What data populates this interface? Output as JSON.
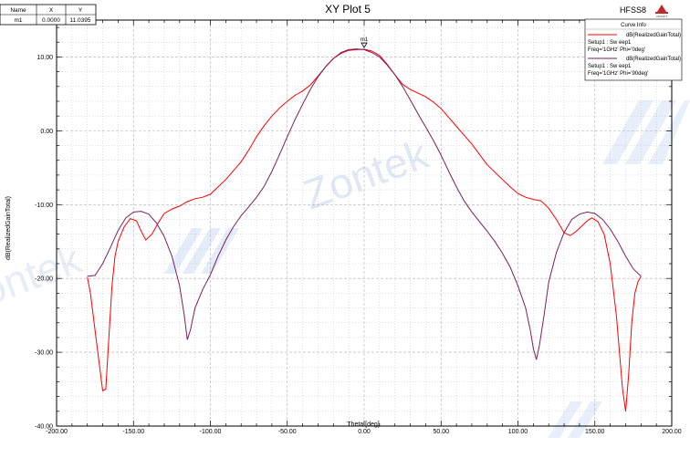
{
  "header": {
    "title": "XY Plot 5",
    "software": "HFSS8",
    "logo_text": "ANSOFT"
  },
  "marker_table": {
    "headers": [
      "Name",
      "X",
      "Y"
    ],
    "rows": [
      [
        "m1",
        "0.0000",
        "11.0395"
      ]
    ]
  },
  "legend": {
    "title": "Curve Info",
    "entries": [
      {
        "line1": "dB(RealizedGainTotal)",
        "line2": "Setup1 : Sw eep1",
        "line3": "Freq='1GHz' Phi='0deg'",
        "color": "#ff0000"
      },
      {
        "line1": "dB(RealizedGainTotal)",
        "line2": "Setup1 : Sw eep1",
        "line3": "Freq='1GHz' Phi='90deg'",
        "color": "#7a1f5c"
      }
    ]
  },
  "watermark": "Zontek",
  "chart_data": {
    "type": "line",
    "title": "XY Plot 5",
    "xlabel": "Theta [deg]",
    "ylabel": "dB(RealizedGainTotal)",
    "xlim": [
      -200,
      200
    ],
    "ylim": [
      -40,
      15
    ],
    "xticks": [
      -200,
      -150,
      -100,
      -50,
      0,
      50,
      100,
      150,
      200
    ],
    "xtick_labels": [
      "-200.00",
      "-150.00",
      "-100.00",
      "-50.00",
      "0.00",
      "50.00",
      "100.00",
      "150.00",
      "200.00"
    ],
    "yticks": [
      -40,
      -30,
      -20,
      -10,
      0,
      10
    ],
    "ytick_labels": [
      "-40.00",
      "-30.00",
      "-20.00",
      "-10.00",
      "0.00",
      "10.00"
    ],
    "grid": true,
    "legend_position": "top-right",
    "marker": {
      "name": "m1",
      "x": 0,
      "y": 11.0395
    },
    "series": [
      {
        "label": "dB(RealizedGainTotal) Setup1 : Sw eep1 Freq='1GHz' Phi='0deg'",
        "color": "#ff0000",
        "x": [
          -180,
          -178,
          -175,
          -172,
          -170,
          -168,
          -166,
          -164,
          -162,
          -160,
          -156,
          -152,
          -148,
          -145,
          -142,
          -138,
          -134,
          -130,
          -125,
          -120,
          -115,
          -110,
          -105,
          -100,
          -95,
          -90,
          -85,
          -80,
          -75,
          -70,
          -65,
          -60,
          -55,
          -50,
          -45,
          -40,
          -35,
          -30,
          -25,
          -20,
          -15,
          -10,
          -5,
          0,
          5,
          10,
          15,
          20,
          25,
          30,
          35,
          40,
          45,
          50,
          55,
          60,
          65,
          70,
          75,
          80,
          85,
          90,
          95,
          100,
          105,
          110,
          115,
          120,
          125,
          130,
          134,
          138,
          142,
          145,
          148,
          152,
          156,
          160,
          164,
          168,
          170,
          172,
          174,
          176,
          178,
          180
        ],
        "y": [
          -19.8,
          -22,
          -27,
          -32,
          -35.2,
          -35,
          -28,
          -21,
          -17,
          -15,
          -13,
          -11.9,
          -12.2,
          -13.6,
          -14.8,
          -14,
          -12.5,
          -11.2,
          -10.6,
          -10.2,
          -9.6,
          -9.2,
          -9,
          -8.6,
          -7.6,
          -6.6,
          -5.4,
          -4.2,
          -2.6,
          -0.8,
          0.7,
          2,
          3.1,
          4,
          4.8,
          5.4,
          6.2,
          7.4,
          8.7,
          9.8,
          10.5,
          10.9,
          11,
          11.04,
          10.8,
          10.2,
          9,
          7.6,
          6.3,
          5.6,
          5.1,
          4.6,
          3.9,
          3,
          1.8,
          0.6,
          -0.6,
          -1.8,
          -3.2,
          -4.6,
          -5.6,
          -6.6,
          -7.6,
          -8.5,
          -9,
          -9.3,
          -9.5,
          -10.5,
          -12,
          -13.8,
          -14.2,
          -13.6,
          -12.8,
          -12.2,
          -11.8,
          -12.3,
          -14,
          -18,
          -25,
          -35,
          -38,
          -33,
          -26,
          -22,
          -20.5,
          -19.7
        ]
      },
      {
        "label": "dB(RealizedGainTotal) Setup1 : Sw eep1 Freq='1GHz' Phi='90deg'",
        "color": "#7a1f5c",
        "x": [
          -180,
          -175,
          -170,
          -165,
          -160,
          -155,
          -150,
          -145,
          -140,
          -135,
          -130,
          -125,
          -120,
          -117,
          -115,
          -113,
          -110,
          -105,
          -100,
          -95,
          -90,
          -85,
          -80,
          -75,
          -70,
          -65,
          -60,
          -55,
          -50,
          -45,
          -40,
          -35,
          -30,
          -25,
          -20,
          -15,
          -10,
          -5,
          0,
          5,
          10,
          15,
          20,
          25,
          30,
          35,
          40,
          45,
          50,
          55,
          60,
          65,
          70,
          75,
          80,
          85,
          90,
          95,
          100,
          105,
          108,
          110,
          112,
          114,
          117,
          120,
          125,
          130,
          135,
          140,
          145,
          150,
          155,
          160,
          165,
          170,
          175,
          180
        ],
        "y": [
          -19.7,
          -19.6,
          -18,
          -15.8,
          -13.5,
          -11.8,
          -11,
          -10.9,
          -11.3,
          -12.5,
          -14.3,
          -17,
          -21,
          -25,
          -28.3,
          -27,
          -24,
          -21.5,
          -19.5,
          -17,
          -14.8,
          -13,
          -11.5,
          -10.3,
          -9,
          -7.5,
          -5.5,
          -3.2,
          -0.8,
          1.5,
          3.6,
          5.6,
          7.3,
          8.7,
          9.8,
          10.6,
          11,
          11.1,
          11,
          10.6,
          10,
          8.9,
          7.6,
          6,
          4.2,
          2.3,
          0.5,
          -1.3,
          -3.3,
          -5.5,
          -7.6,
          -9.5,
          -11,
          -12.3,
          -13.6,
          -15,
          -16.6,
          -18.5,
          -21,
          -24,
          -27,
          -29.5,
          -31,
          -29,
          -25,
          -20.5,
          -16.5,
          -13.8,
          -12,
          -11.3,
          -11,
          -11.2,
          -12,
          -13.3,
          -15,
          -17,
          -18.7,
          -19.7
        ]
      }
    ]
  }
}
